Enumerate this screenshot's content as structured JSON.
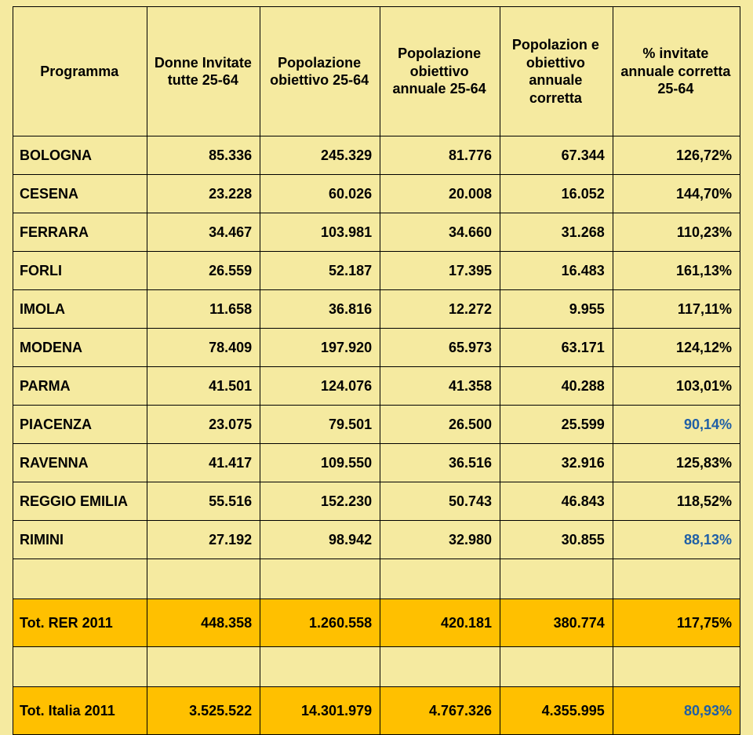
{
  "columns": [
    "Programma",
    "Donne Invitate tutte 25-64",
    "Popolazione obiettivo 25-64",
    "Popolazione obiettivo annuale 25-64",
    "Popolazion e obiettivo annuale corretta",
    "% invitate annuale corretta 25-64"
  ],
  "col_widths_pct": [
    18.5,
    15.5,
    16.5,
    16.5,
    15.5,
    17.5
  ],
  "rows": [
    {
      "label": "BOLOGNA",
      "v": [
        "85.336",
        "245.329",
        "81.776",
        "67.344",
        "126,72%"
      ],
      "pct_low": false
    },
    {
      "label": "CESENA",
      "v": [
        "23.228",
        "60.026",
        "20.008",
        "16.052",
        "144,70%"
      ],
      "pct_low": false
    },
    {
      "label": "FERRARA",
      "v": [
        "34.467",
        "103.981",
        "34.660",
        "31.268",
        "110,23%"
      ],
      "pct_low": false
    },
    {
      "label": "FORLI",
      "v": [
        "26.559",
        "52.187",
        "17.395",
        "16.483",
        "161,13%"
      ],
      "pct_low": false
    },
    {
      "label": "IMOLA",
      "v": [
        "11.658",
        "36.816",
        "12.272",
        "9.955",
        "117,11%"
      ],
      "pct_low": false
    },
    {
      "label": "MODENA",
      "v": [
        "78.409",
        "197.920",
        "65.973",
        "63.171",
        "124,12%"
      ],
      "pct_low": false
    },
    {
      "label": "PARMA",
      "v": [
        "41.501",
        "124.076",
        "41.358",
        "40.288",
        "103,01%"
      ],
      "pct_low": false
    },
    {
      "label": "PIACENZA",
      "v": [
        "23.075",
        "79.501",
        "26.500",
        "25.599",
        "90,14%"
      ],
      "pct_low": true
    },
    {
      "label": "RAVENNA",
      "v": [
        "41.417",
        "109.550",
        "36.516",
        "32.916",
        "125,83%"
      ],
      "pct_low": false
    },
    {
      "label": "REGGIO EMILIA",
      "v": [
        "55.516",
        "152.230",
        "50.743",
        "46.843",
        "118,52%"
      ],
      "pct_low": false
    },
    {
      "label": "RIMINI",
      "v": [
        "27.192",
        "98.942",
        "32.980",
        "30.855",
        "88,13%"
      ],
      "pct_low": true
    }
  ],
  "totals": [
    {
      "label": "Tot. RER 2011",
      "v": [
        "448.358",
        "1.260.558",
        "420.181",
        "380.774",
        "117,75%"
      ],
      "pct_low": false
    },
    {
      "label": "Tot. Italia 2011",
      "v": [
        "3.525.522",
        "14.301.979",
        "4.767.326",
        "4.355.995",
        "80,93%"
      ],
      "pct_low": true
    }
  ],
  "colors": {
    "background": "#f5eaa0",
    "total_row": "#ffc000",
    "border": "#000000",
    "text": "#000000",
    "pct_low": "#1f5fa6"
  },
  "typography": {
    "font_family": "Arial",
    "header_fontsize_pt": 14,
    "body_fontsize_pt": 14,
    "weight": "bold"
  }
}
